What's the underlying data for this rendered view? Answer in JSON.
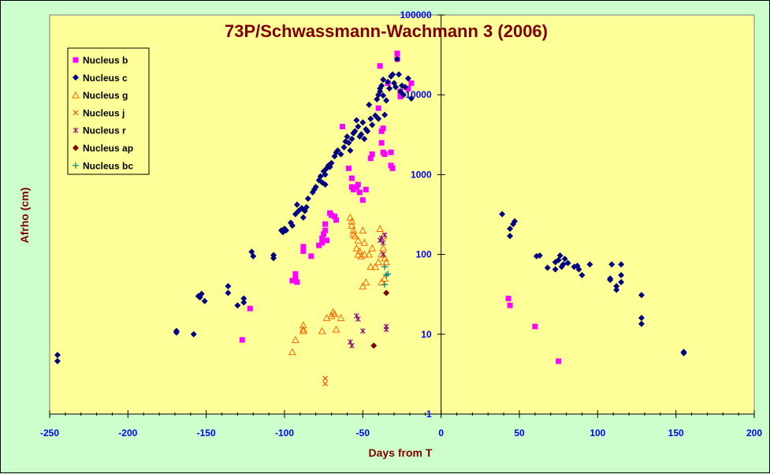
{
  "chart_data": {
    "type": "scatter",
    "title": "73P/Schwassmann-Wachmann 3 (2006)",
    "xlabel": "Days from T",
    "ylabel": "Afrho (cm)",
    "xlim": [
      -250,
      200
    ],
    "ylim": [
      1,
      100000
    ],
    "yscale": "log",
    "xticks": [
      -250,
      -200,
      -150,
      -100,
      -50,
      0,
      50,
      100,
      150,
      200
    ],
    "yticks": [
      1,
      10,
      100,
      1000,
      10000,
      100000
    ],
    "grid": false,
    "legend": "top-left",
    "colors": {
      "plot_bg": "#ffff99",
      "outer_bg": "#ccffcc",
      "title": "#800000",
      "ticks": "#0000ff"
    },
    "series": [
      {
        "name": "Nucleus b",
        "marker": "square",
        "color": "#ff00ff",
        "points": [
          [
            -127,
            8.5
          ],
          [
            -122,
            21
          ],
          [
            -95,
            47
          ],
          [
            -93,
            50
          ],
          [
            -93,
            57
          ],
          [
            -92,
            45
          ],
          [
            -88,
            110
          ],
          [
            -88,
            125
          ],
          [
            -83,
            95
          ],
          [
            -78,
            130
          ],
          [
            -76,
            140
          ],
          [
            -76,
            160
          ],
          [
            -75,
            180
          ],
          [
            -74,
            200
          ],
          [
            -74,
            240
          ],
          [
            -73,
            150
          ],
          [
            -71,
            330
          ],
          [
            -70,
            310
          ],
          [
            -68,
            300
          ],
          [
            -67,
            270
          ],
          [
            -63,
            4000
          ],
          [
            -59,
            1200
          ],
          [
            -57,
            900
          ],
          [
            -57,
            700
          ],
          [
            -56,
            650
          ],
          [
            -54,
            700
          ],
          [
            -53,
            750
          ],
          [
            -52,
            600
          ],
          [
            -50,
            480
          ],
          [
            -48,
            650
          ],
          [
            -45,
            1600
          ],
          [
            -44,
            1800
          ],
          [
            -40,
            6800
          ],
          [
            -39,
            23000
          ],
          [
            -38,
            3500
          ],
          [
            -38,
            2500
          ],
          [
            -37,
            3800
          ],
          [
            -37,
            1900
          ],
          [
            -36,
            1800
          ],
          [
            -34,
            14000
          ],
          [
            -32,
            1900
          ],
          [
            -32,
            1300
          ],
          [
            -31,
            1200
          ],
          [
            -28,
            33000
          ],
          [
            -28,
            28000
          ],
          [
            -26,
            9500
          ],
          [
            -26,
            11000
          ],
          [
            -21,
            12000
          ],
          [
            -19,
            14000
          ],
          [
            43,
            28
          ],
          [
            44,
            23
          ],
          [
            60,
            12.5
          ],
          [
            75,
            4.6
          ]
        ]
      },
      {
        "name": "Nucleus c",
        "marker": "diamond",
        "color": "#000080",
        "points": [
          [
            -245,
            5.5
          ],
          [
            -245,
            4.6
          ],
          [
            -169,
            10.5
          ],
          [
            -169,
            11
          ],
          [
            -158,
            10
          ],
          [
            -155,
            30
          ],
          [
            -154,
            29
          ],
          [
            -153,
            32
          ],
          [
            -151,
            26
          ],
          [
            -136,
            40
          ],
          [
            -136,
            33
          ],
          [
            -130,
            23
          ],
          [
            -126,
            28
          ],
          [
            -126,
            25
          ],
          [
            -121,
            108
          ],
          [
            -120,
            95
          ],
          [
            -107,
            98
          ],
          [
            -107,
            90
          ],
          [
            -102,
            200
          ],
          [
            -101,
            190
          ],
          [
            -100,
            210
          ],
          [
            -99,
            200
          ],
          [
            -96,
            250
          ],
          [
            -95,
            230
          ],
          [
            -93,
            320
          ],
          [
            -92,
            420
          ],
          [
            -91,
            350
          ],
          [
            -89,
            380
          ],
          [
            -88,
            290
          ],
          [
            -87,
            350
          ],
          [
            -86,
            390
          ],
          [
            -85,
            500
          ],
          [
            -82,
            600
          ],
          [
            -81,
            650
          ],
          [
            -80,
            700
          ],
          [
            -78,
            850
          ],
          [
            -77,
            950
          ],
          [
            -76,
            800
          ],
          [
            -75,
            1100
          ],
          [
            -74,
            1000
          ],
          [
            -74,
            750
          ],
          [
            -73,
            1200
          ],
          [
            -72,
            1300
          ],
          [
            -71,
            1250
          ],
          [
            -70,
            1400
          ],
          [
            -68,
            1700
          ],
          [
            -67,
            1900
          ],
          [
            -66,
            2000
          ],
          [
            -64,
            1800
          ],
          [
            -62,
            2200
          ],
          [
            -61,
            2600
          ],
          [
            -60,
            3000
          ],
          [
            -59,
            2500
          ],
          [
            -58,
            2000
          ],
          [
            -57,
            2800
          ],
          [
            -56,
            3300
          ],
          [
            -55,
            3500
          ],
          [
            -54,
            4800
          ],
          [
            -53,
            4000
          ],
          [
            -52,
            3000
          ],
          [
            -51,
            3200
          ],
          [
            -50,
            4500
          ],
          [
            -49,
            2800
          ],
          [
            -48,
            3700
          ],
          [
            -47,
            3500
          ],
          [
            -46,
            7500
          ],
          [
            -45,
            5000
          ],
          [
            -44,
            4200
          ],
          [
            -42,
            5500
          ],
          [
            -41,
            8800
          ],
          [
            -40,
            10000
          ],
          [
            -40,
            5000
          ],
          [
            -39,
            11000
          ],
          [
            -39,
            12000
          ],
          [
            -38,
            13000
          ],
          [
            -37,
            9800
          ],
          [
            -37,
            15500
          ],
          [
            -36,
            5600
          ],
          [
            -35,
            8500
          ],
          [
            -34,
            14500
          ],
          [
            -33,
            12000
          ],
          [
            -32,
            17000
          ],
          [
            -31,
            18000
          ],
          [
            -30,
            14000
          ],
          [
            -29,
            12500
          ],
          [
            -28,
            28000
          ],
          [
            -27,
            18000
          ],
          [
            -26,
            11000
          ],
          [
            -25,
            13000
          ],
          [
            -24,
            10000
          ],
          [
            -23,
            12500
          ],
          [
            -21,
            16000
          ],
          [
            -19,
            9000
          ],
          [
            39,
            320
          ],
          [
            44,
            210
          ],
          [
            44,
            170
          ],
          [
            46,
            240
          ],
          [
            47,
            260
          ],
          [
            61,
            95
          ],
          [
            63,
            97
          ],
          [
            68,
            68
          ],
          [
            73,
            80
          ],
          [
            73,
            65
          ],
          [
            75,
            85
          ],
          [
            76,
            97
          ],
          [
            77,
            70
          ],
          [
            78,
            75
          ],
          [
            79,
            88
          ],
          [
            81,
            78
          ],
          [
            85,
            70
          ],
          [
            87,
            72
          ],
          [
            88,
            65
          ],
          [
            90,
            55
          ],
          [
            95,
            75
          ],
          [
            108,
            50
          ],
          [
            108,
            48
          ],
          [
            109,
            75
          ],
          [
            112,
            40
          ],
          [
            112,
            36
          ],
          [
            115,
            55
          ],
          [
            115,
            75
          ],
          [
            115,
            45
          ],
          [
            128,
            31
          ],
          [
            128,
            16
          ],
          [
            128,
            13.5
          ],
          [
            155,
            6
          ],
          [
            155,
            5.8
          ]
        ]
      },
      {
        "name": "Nucleus g",
        "marker": "triangle",
        "color": "#ff6600",
        "points": [
          [
            -95,
            6
          ],
          [
            -93,
            8.5
          ],
          [
            -88,
            11
          ],
          [
            -88,
            13
          ],
          [
            -88,
            11.5
          ],
          [
            -76,
            11
          ],
          [
            -73,
            16
          ],
          [
            -70,
            17
          ],
          [
            -69,
            19
          ],
          [
            -68,
            18
          ],
          [
            -67,
            11.5
          ],
          [
            -64,
            16
          ],
          [
            -58,
            290
          ],
          [
            -57,
            260
          ],
          [
            -57,
            230
          ],
          [
            -56,
            200
          ],
          [
            -56,
            180
          ],
          [
            -55,
            170
          ],
          [
            -54,
            120
          ],
          [
            -53,
            150
          ],
          [
            -53,
            100
          ],
          [
            -52,
            110
          ],
          [
            -51,
            95
          ],
          [
            -50,
            200
          ],
          [
            -50,
            40
          ],
          [
            -49,
            140
          ],
          [
            -49,
            100
          ],
          [
            -48,
            45
          ],
          [
            -46,
            100
          ],
          [
            -45,
            70
          ],
          [
            -44,
            120
          ],
          [
            -42,
            70
          ],
          [
            -40,
            80
          ],
          [
            -39,
            210
          ],
          [
            -38,
            100
          ],
          [
            -38,
            45
          ],
          [
            -37,
            170
          ],
          [
            -37,
            120
          ],
          [
            -36,
            90
          ],
          [
            -36,
            50
          ],
          [
            -35,
            80
          ]
        ]
      },
      {
        "name": "Nucleus j",
        "marker": "x",
        "color": "#ff3300",
        "points": [
          [
            -74,
            2.8
          ],
          [
            -74,
            2.4
          ]
        ]
      },
      {
        "name": "Nucleus r",
        "marker": "star",
        "color": "#800080",
        "points": [
          [
            -58,
            8
          ],
          [
            -57,
            7.2
          ],
          [
            -54,
            17
          ],
          [
            -53,
            15.5
          ],
          [
            -50,
            11
          ],
          [
            -39,
            150
          ],
          [
            -38,
            160
          ],
          [
            -37,
            140
          ],
          [
            -37,
            100
          ],
          [
            -36,
            175
          ],
          [
            -35,
            11.5
          ],
          [
            -35,
            12.5
          ]
        ]
      },
      {
        "name": "Nucleus ap",
        "marker": "diamond",
        "color": "#800000",
        "points": [
          [
            -43,
            7.2
          ],
          [
            -35,
            33
          ]
        ]
      },
      {
        "name": "Nucleus bc",
        "marker": "plus",
        "color": "#008080",
        "points": [
          [
            -36,
            70
          ],
          [
            -35,
            55
          ],
          [
            -34,
            57
          ],
          [
            -36,
            42
          ]
        ]
      }
    ]
  }
}
